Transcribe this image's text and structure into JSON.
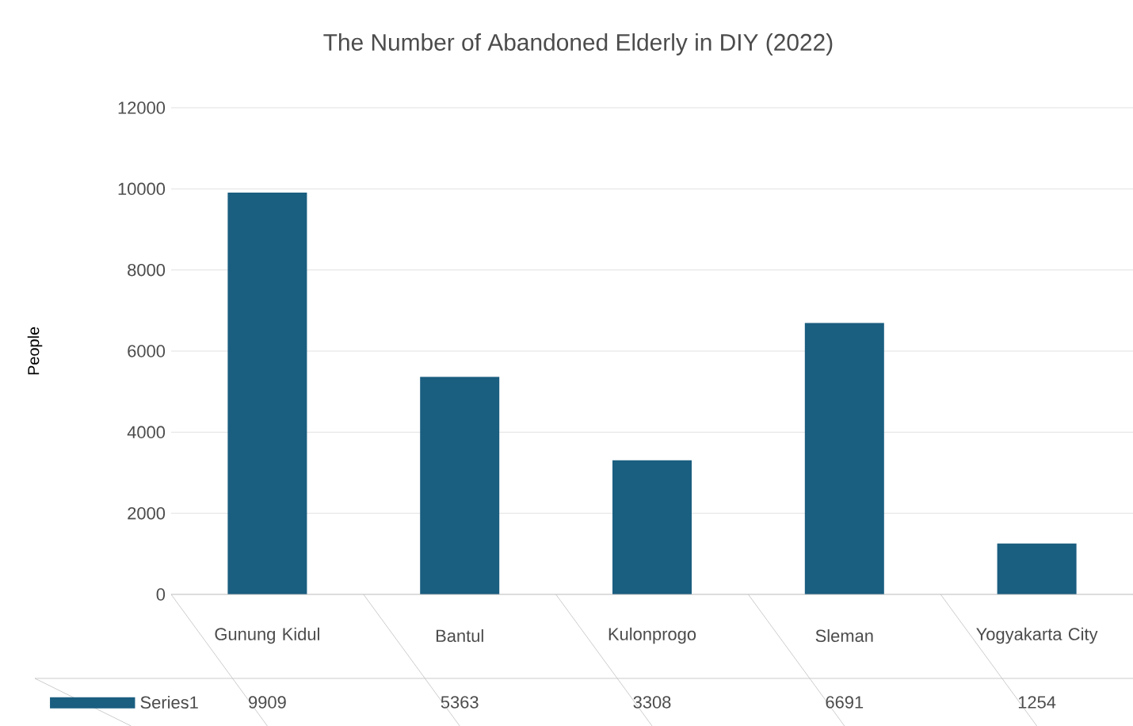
{
  "chart_data": {
    "type": "bar",
    "title": "The Number of Abandoned Elderly in DIY (2022)",
    "ylabel": "People",
    "categories": [
      "Gunung Kidul",
      "Bantul",
      "Kulonprogo",
      "Sleman",
      "Yogyakarta City"
    ],
    "series": [
      {
        "name": "Series1",
        "color": "#1a5e80",
        "values": [
          9909,
          5363,
          3308,
          6691,
          1254
        ]
      }
    ],
    "ylim": [
      0,
      12000
    ],
    "yticks": [
      0,
      2000,
      4000,
      6000,
      8000,
      10000,
      12000
    ],
    "grid": "y",
    "data_labels": true
  }
}
